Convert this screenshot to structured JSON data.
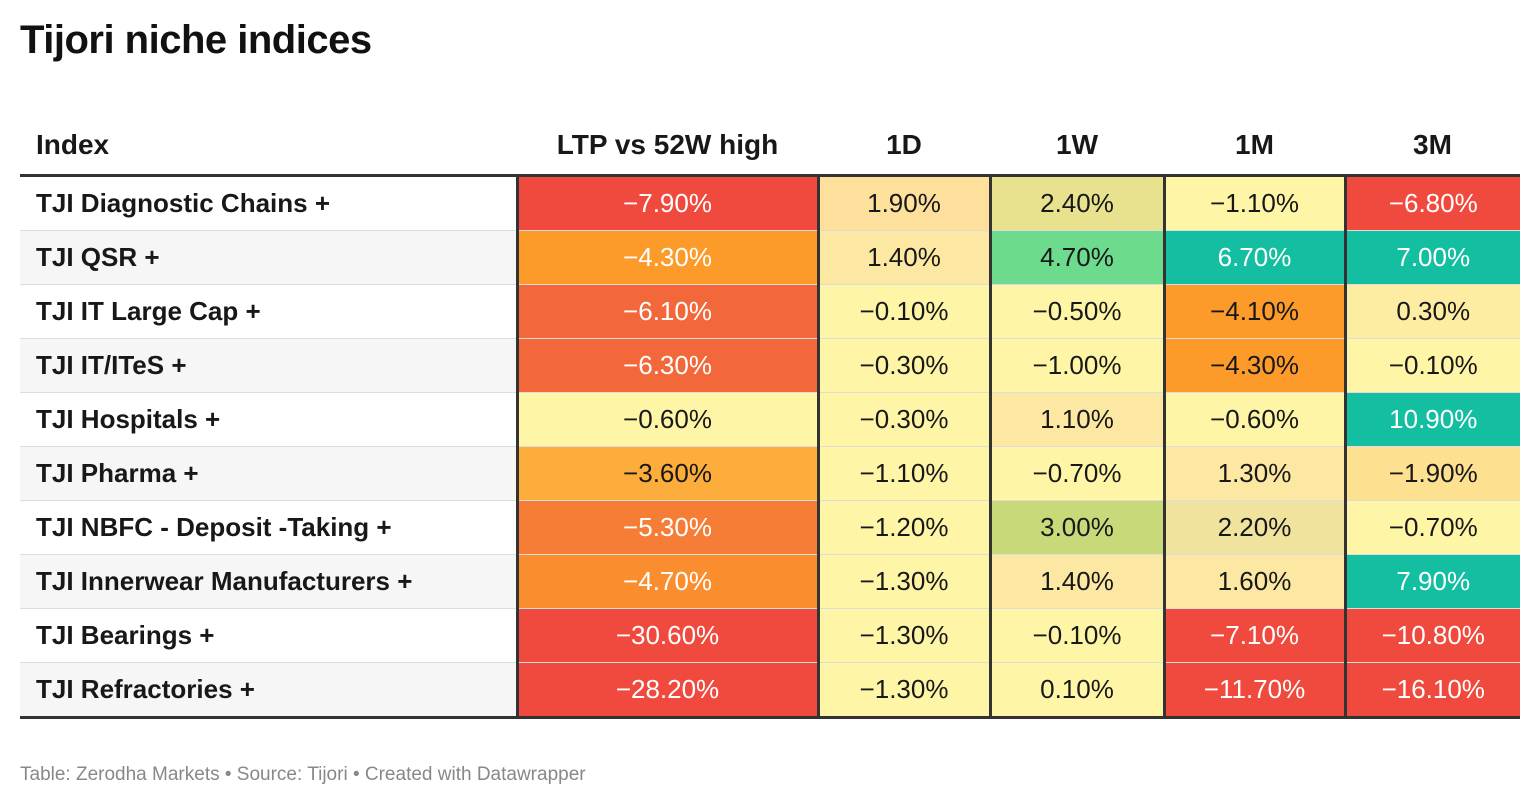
{
  "title": "Tijori niche indices",
  "source": "Table: Zerodha Markets • Source: Tijori • Created with Datawrapper",
  "headers": [
    "Index",
    "LTP vs 52W high",
    "1D",
    "1W",
    "1M",
    "3M"
  ],
  "colors": {
    "deep_red": "#ef4a3d",
    "red_orange": "#f2683a",
    "orange": "#fc9a2a",
    "light_orange": "#fcad3b",
    "pale_orange": "#fce090",
    "pale_yellow": "#fef6a6",
    "cream": "#fde8a3",
    "khaki": "#e8e28f",
    "light_green": "#6cdb8d",
    "olive_green": "#c8d97a",
    "teal": "#14bfa1"
  },
  "chart_data": {
    "type": "table",
    "title": "Tijori niche indices",
    "columns": [
      "Index",
      "LTP vs 52W high",
      "1D",
      "1W",
      "1M",
      "3M"
    ],
    "rows": [
      {
        "name": "TJI Diagnostic Chains +",
        "values": [
          "−7.90%",
          "1.90%",
          "2.40%",
          "−1.10%",
          "−6.80%"
        ],
        "fills": [
          "#ef4a3d",
          "#fde09c",
          "#e8e28f",
          "#fef6a6",
          "#ef4a3d"
        ],
        "text": [
          "#ffffff",
          "#181818",
          "#181818",
          "#181818",
          "#ffffff"
        ]
      },
      {
        "name": "TJI QSR +",
        "values": [
          "−4.30%",
          "1.40%",
          "4.70%",
          "6.70%",
          "7.00%"
        ],
        "fills": [
          "#fc9a2a",
          "#fde8a3",
          "#6cdb8d",
          "#14bfa1",
          "#14bfa1"
        ],
        "text": [
          "#ffffff",
          "#181818",
          "#181818",
          "#ffffff",
          "#ffffff"
        ]
      },
      {
        "name": "TJI IT Large Cap +",
        "values": [
          "−6.10%",
          "−0.10%",
          "−0.50%",
          "−4.10%",
          "0.30%"
        ],
        "fills": [
          "#f2683a",
          "#fef6a6",
          "#fef6a6",
          "#fc9a2a",
          "#fdeda3"
        ],
        "text": [
          "#ffffff",
          "#181818",
          "#181818",
          "#181818",
          "#181818"
        ]
      },
      {
        "name": "TJI IT/ITeS +",
        "values": [
          "−6.30%",
          "−0.30%",
          "−1.00%",
          "−4.30%",
          "−0.10%"
        ],
        "fills": [
          "#f2683a",
          "#fef6a6",
          "#fef6a6",
          "#fc9a2a",
          "#fef6a6"
        ],
        "text": [
          "#ffffff",
          "#181818",
          "#181818",
          "#181818",
          "#181818"
        ]
      },
      {
        "name": "TJI Hospitals +",
        "values": [
          "−0.60%",
          "−0.30%",
          "1.10%",
          "−0.60%",
          "10.90%"
        ],
        "fills": [
          "#fef6a6",
          "#fef6a6",
          "#fde8a3",
          "#fef6a6",
          "#14bfa1"
        ],
        "text": [
          "#181818",
          "#181818",
          "#181818",
          "#181818",
          "#ffffff"
        ]
      },
      {
        "name": "TJI Pharma +",
        "values": [
          "−3.60%",
          "−1.10%",
          "−0.70%",
          "1.30%",
          "−1.90%"
        ],
        "fills": [
          "#fcad3b",
          "#fef6a6",
          "#fef6a6",
          "#fde8a3",
          "#fde090"
        ],
        "text": [
          "#181818",
          "#181818",
          "#181818",
          "#181818",
          "#181818"
        ]
      },
      {
        "name": "TJI NBFC - Deposit -Taking +",
        "values": [
          "−5.30%",
          "−1.20%",
          "3.00%",
          "2.20%",
          "−0.70%"
        ],
        "fills": [
          "#f57d35",
          "#fef6a6",
          "#c8d97a",
          "#f0e39e",
          "#fef6a6"
        ],
        "text": [
          "#ffffff",
          "#181818",
          "#181818",
          "#181818",
          "#181818"
        ]
      },
      {
        "name": "TJI Innerwear Manufacturers +",
        "values": [
          "−4.70%",
          "−1.30%",
          "1.40%",
          "1.60%",
          "7.90%"
        ],
        "fills": [
          "#fa8d2e",
          "#fef6a6",
          "#fde8a3",
          "#fde8a3",
          "#14bfa1"
        ],
        "text": [
          "#ffffff",
          "#181818",
          "#181818",
          "#181818",
          "#ffffff"
        ]
      },
      {
        "name": "TJI Bearings +",
        "values": [
          "−30.60%",
          "−1.30%",
          "−0.10%",
          "−7.10%",
          "−10.80%"
        ],
        "fills": [
          "#ef4a3d",
          "#fef6a6",
          "#fef6a6",
          "#ef4a3d",
          "#ef4a3d"
        ],
        "text": [
          "#ffffff",
          "#181818",
          "#181818",
          "#ffffff",
          "#ffffff"
        ]
      },
      {
        "name": "TJI Refractories +",
        "values": [
          "−28.20%",
          "−1.30%",
          "0.10%",
          "−11.70%",
          "−16.10%"
        ],
        "fills": [
          "#ef4a3d",
          "#fef6a6",
          "#fef6a6",
          "#ef4a3d",
          "#ef4a3d"
        ],
        "text": [
          "#ffffff",
          "#181818",
          "#181818",
          "#ffffff",
          "#ffffff"
        ]
      }
    ]
  }
}
